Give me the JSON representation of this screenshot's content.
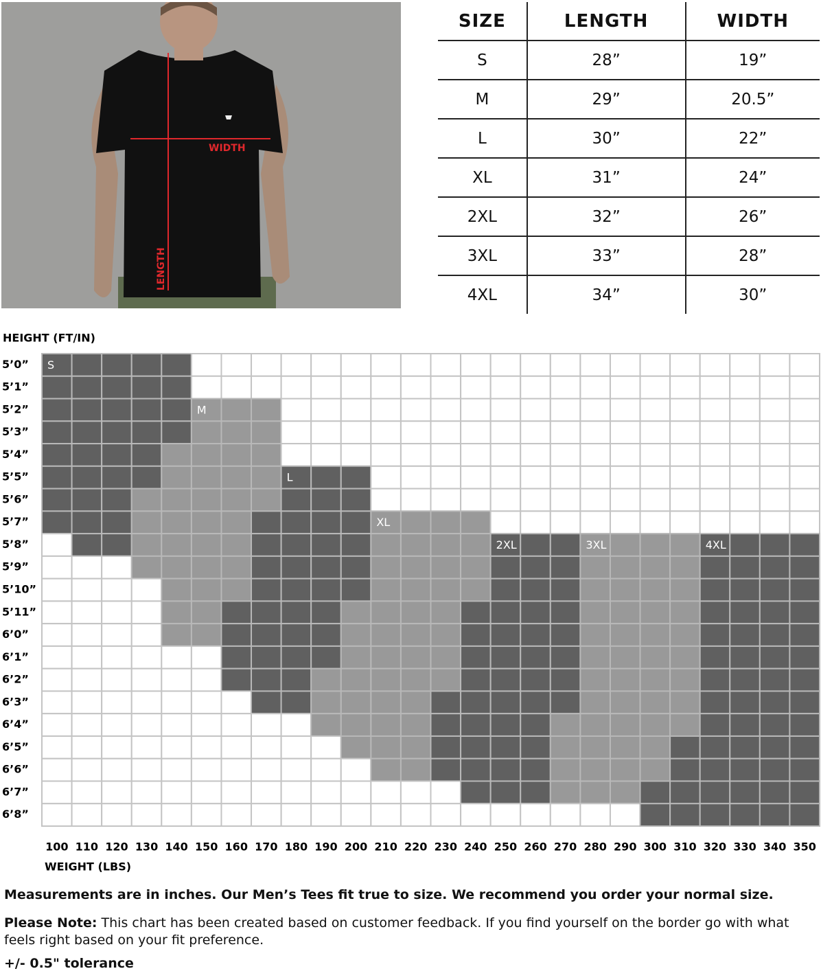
{
  "photo": {
    "width_label": "WIDTH",
    "length_label": "LENGTH"
  },
  "table": {
    "header": [
      "SIZE",
      "LENGTH",
      "WIDTH"
    ],
    "rows": [
      [
        "S",
        "28”",
        "19”"
      ],
      [
        "M",
        "29”",
        "20.5”"
      ],
      [
        "L",
        "30”",
        "22”"
      ],
      [
        "XL",
        "31”",
        "24”"
      ],
      [
        "2XL",
        "32”",
        "26”"
      ],
      [
        "3XL",
        "33”",
        "28”"
      ],
      [
        "4XL",
        "34”",
        "30”"
      ]
    ]
  },
  "chart": {
    "y_title": "HEIGHT (FT/IN)",
    "x_title": "WEIGHT (LBS)",
    "heights": [
      "5’0”",
      "5’1”",
      "5’2”",
      "5’3”",
      "5’4”",
      "5’5”",
      "5’6”",
      "5’7”",
      "5’8”",
      "5’9”",
      "5’10”",
      "5’11”",
      "6’0”",
      "6’1”",
      "6’2”",
      "6’3”",
      "6’4”",
      "6’5”",
      "6’6”",
      "6’7”",
      "6’8”"
    ],
    "weights": [
      100,
      110,
      120,
      130,
      140,
      150,
      160,
      170,
      180,
      190,
      200,
      210,
      220,
      230,
      240,
      250,
      260,
      270,
      280,
      290,
      300,
      310,
      320,
      330,
      340,
      350
    ],
    "sizes": [
      {
        "label": "S",
        "color": "#606060"
      },
      {
        "label": "M",
        "color": "#999999"
      },
      {
        "label": "L",
        "color": "#606060"
      },
      {
        "label": "XL",
        "color": "#999999"
      },
      {
        "label": "2XL",
        "color": "#606060"
      },
      {
        "label": "3XL",
        "color": "#999999"
      },
      {
        "label": "4XL",
        "color": "#606060"
      }
    ],
    "grid": [
      [
        0,
        0,
        0,
        0,
        0,
        null,
        null,
        null,
        null,
        null,
        null,
        null,
        null,
        null,
        null,
        null,
        null,
        null,
        null,
        null,
        null,
        null,
        null,
        null,
        null,
        null
      ],
      [
        0,
        0,
        0,
        0,
        0,
        null,
        null,
        null,
        null,
        null,
        null,
        null,
        null,
        null,
        null,
        null,
        null,
        null,
        null,
        null,
        null,
        null,
        null,
        null,
        null,
        null
      ],
      [
        0,
        0,
        0,
        0,
        0,
        1,
        1,
        1,
        null,
        null,
        null,
        null,
        null,
        null,
        null,
        null,
        null,
        null,
        null,
        null,
        null,
        null,
        null,
        null,
        null,
        null
      ],
      [
        0,
        0,
        0,
        0,
        0,
        1,
        1,
        1,
        null,
        null,
        null,
        null,
        null,
        null,
        null,
        null,
        null,
        null,
        null,
        null,
        null,
        null,
        null,
        null,
        null,
        null
      ],
      [
        0,
        0,
        0,
        0,
        1,
        1,
        1,
        1,
        null,
        null,
        null,
        null,
        null,
        null,
        null,
        null,
        null,
        null,
        null,
        null,
        null,
        null,
        null,
        null,
        null,
        null
      ],
      [
        0,
        0,
        0,
        0,
        1,
        1,
        1,
        1,
        2,
        2,
        2,
        null,
        null,
        null,
        null,
        null,
        null,
        null,
        null,
        null,
        null,
        null,
        null,
        null,
        null,
        null
      ],
      [
        0,
        0,
        0,
        1,
        1,
        1,
        1,
        1,
        2,
        2,
        2,
        null,
        null,
        null,
        null,
        null,
        null,
        null,
        null,
        null,
        null,
        null,
        null,
        null,
        null,
        null
      ],
      [
        0,
        0,
        0,
        1,
        1,
        1,
        1,
        2,
        2,
        2,
        2,
        3,
        3,
        3,
        3,
        null,
        null,
        null,
        null,
        null,
        null,
        null,
        null,
        null,
        null,
        null
      ],
      [
        null,
        0,
        0,
        1,
        1,
        1,
        1,
        2,
        2,
        2,
        2,
        3,
        3,
        3,
        3,
        4,
        4,
        4,
        5,
        5,
        5,
        5,
        6,
        6,
        6,
        6
      ],
      [
        null,
        null,
        null,
        1,
        1,
        1,
        1,
        2,
        2,
        2,
        2,
        3,
        3,
        3,
        3,
        4,
        4,
        4,
        5,
        5,
        5,
        5,
        6,
        6,
        6,
        6
      ],
      [
        null,
        null,
        null,
        null,
        1,
        1,
        1,
        2,
        2,
        2,
        2,
        3,
        3,
        3,
        3,
        4,
        4,
        4,
        5,
        5,
        5,
        5,
        6,
        6,
        6,
        6
      ],
      [
        null,
        null,
        null,
        null,
        1,
        1,
        2,
        2,
        2,
        2,
        3,
        3,
        3,
        3,
        4,
        4,
        4,
        4,
        5,
        5,
        5,
        5,
        6,
        6,
        6,
        6
      ],
      [
        null,
        null,
        null,
        null,
        1,
        1,
        2,
        2,
        2,
        2,
        3,
        3,
        3,
        3,
        4,
        4,
        4,
        4,
        5,
        5,
        5,
        5,
        6,
        6,
        6,
        6
      ],
      [
        null,
        null,
        null,
        null,
        null,
        null,
        2,
        2,
        2,
        2,
        3,
        3,
        3,
        3,
        4,
        4,
        4,
        4,
        5,
        5,
        5,
        5,
        6,
        6,
        6,
        6
      ],
      [
        null,
        null,
        null,
        null,
        null,
        null,
        2,
        2,
        2,
        3,
        3,
        3,
        3,
        3,
        4,
        4,
        4,
        4,
        5,
        5,
        5,
        5,
        6,
        6,
        6,
        6
      ],
      [
        null,
        null,
        null,
        null,
        null,
        null,
        null,
        2,
        2,
        3,
        3,
        3,
        3,
        4,
        4,
        4,
        4,
        4,
        5,
        5,
        5,
        5,
        6,
        6,
        6,
        6
      ],
      [
        null,
        null,
        null,
        null,
        null,
        null,
        null,
        null,
        null,
        3,
        3,
        3,
        3,
        4,
        4,
        4,
        4,
        5,
        5,
        5,
        5,
        5,
        6,
        6,
        6,
        6
      ],
      [
        null,
        null,
        null,
        null,
        null,
        null,
        null,
        null,
        null,
        null,
        3,
        3,
        3,
        4,
        4,
        4,
        4,
        5,
        5,
        5,
        5,
        6,
        6,
        6,
        6,
        6
      ],
      [
        null,
        null,
        null,
        null,
        null,
        null,
        null,
        null,
        null,
        null,
        null,
        3,
        3,
        4,
        4,
        4,
        4,
        5,
        5,
        5,
        5,
        6,
        6,
        6,
        6,
        6
      ],
      [
        null,
        null,
        null,
        null,
        null,
        null,
        null,
        null,
        null,
        null,
        null,
        null,
        null,
        null,
        4,
        4,
        4,
        5,
        5,
        5,
        6,
        6,
        6,
        6,
        6,
        6
      ],
      [
        null,
        null,
        null,
        null,
        null,
        null,
        null,
        null,
        null,
        null,
        null,
        null,
        null,
        null,
        null,
        null,
        null,
        null,
        null,
        null,
        6,
        6,
        6,
        6,
        6,
        6
      ]
    ]
  },
  "footer": {
    "main": "Measurements are in inches. Our Men’s Tees fit true to size. We recommend you order your normal size.",
    "note_label": "Please Note:",
    "note_text": "This chart has been created based on customer feedback. If you find yourself on the border go with what feels right based on your fit preference.",
    "tolerance": "+/- 0.5\" tolerance"
  }
}
